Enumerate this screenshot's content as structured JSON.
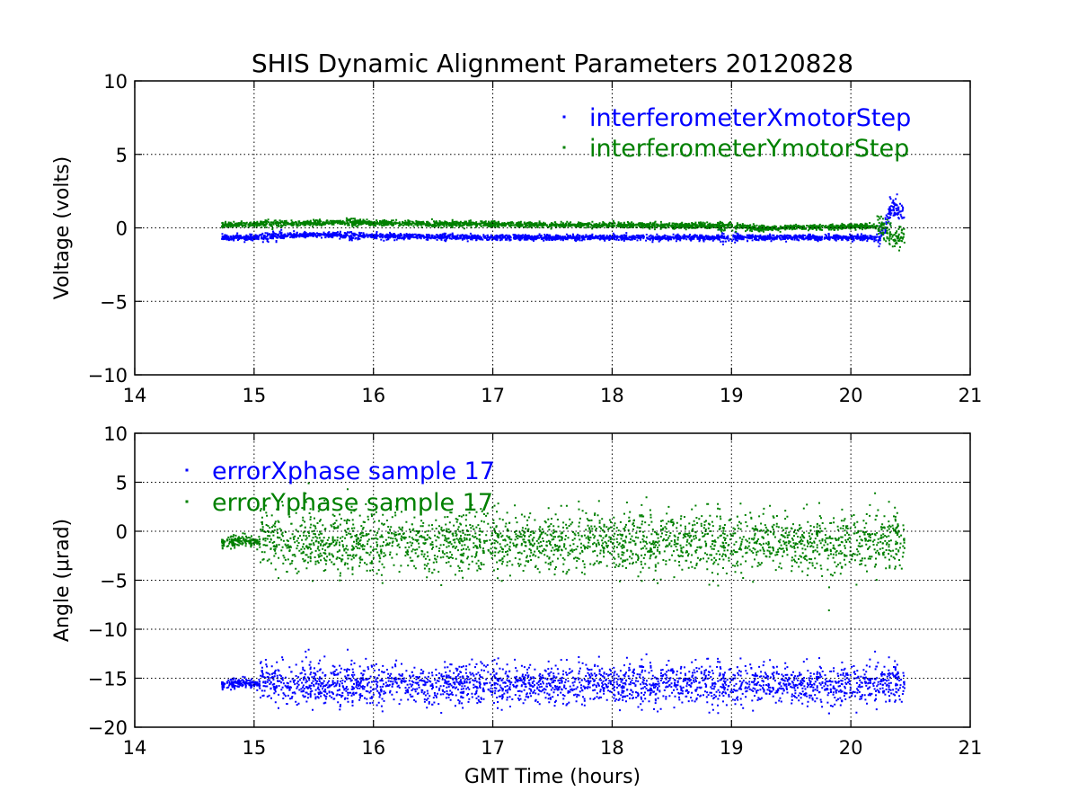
{
  "figure_title": "SHIS Dynamic Alignment Parameters 20120828",
  "chart_data": [
    {
      "type": "scatter",
      "xlabel": "",
      "ylabel": "Voltage (volts)",
      "xlim": [
        14,
        21
      ],
      "ylim": [
        -10,
        10
      ],
      "xticks": [
        14,
        15,
        16,
        17,
        18,
        19,
        20,
        21
      ],
      "yticks": [
        -10,
        -5,
        0,
        5,
        10
      ],
      "xtick_labels": [
        "14",
        "15",
        "16",
        "17",
        "18",
        "19",
        "20",
        "21"
      ],
      "ytick_labels": [
        "−10",
        "−5",
        "0",
        "5",
        "10"
      ],
      "grid": true,
      "legend_position": "top-right",
      "series": [
        {
          "name": "interferometerXmotorStep",
          "color": "#0000ff",
          "x": [
            14.73,
            15.0,
            15.25,
            15.5,
            15.75,
            16.0,
            16.5,
            17.0,
            17.5,
            18.0,
            18.5,
            19.0,
            19.5,
            20.0,
            20.25,
            20.35,
            20.45
          ],
          "y": [
            -0.6,
            -0.6,
            -0.45,
            -0.4,
            -0.45,
            -0.5,
            -0.55,
            -0.6,
            -0.6,
            -0.6,
            -0.6,
            -0.6,
            -0.6,
            -0.6,
            -0.6,
            1.5,
            1.0
          ]
        },
        {
          "name": "interferometerYmotorStep",
          "color": "#008000",
          "x": [
            14.73,
            15.0,
            15.25,
            15.5,
            15.8,
            16.0,
            16.5,
            17.0,
            17.5,
            18.0,
            18.5,
            19.0,
            19.25,
            19.5,
            20.0,
            20.25,
            20.35,
            20.45
          ],
          "y": [
            0.25,
            0.3,
            0.35,
            0.4,
            0.45,
            0.4,
            0.35,
            0.3,
            0.25,
            0.25,
            0.2,
            0.2,
            0.0,
            0.1,
            0.15,
            0.15,
            -0.6,
            -0.5
          ]
        }
      ]
    },
    {
      "type": "scatter",
      "xlabel": "GMT Time (hours)",
      "ylabel": "Angle (μrad)",
      "xlim": [
        14,
        21
      ],
      "ylim": [
        -20,
        10
      ],
      "xticks": [
        14,
        15,
        16,
        17,
        18,
        19,
        20,
        21
      ],
      "yticks": [
        -20,
        -15,
        -10,
        -5,
        0,
        5,
        10
      ],
      "xtick_labels": [
        "14",
        "15",
        "16",
        "17",
        "18",
        "19",
        "20",
        "21"
      ],
      "ytick_labels": [
        "−20",
        "−15",
        "−10",
        "−5",
        "0",
        "5",
        "10"
      ],
      "grid": true,
      "legend_position": "top-left",
      "series": [
        {
          "name": "errorXphase sample 17",
          "color": "#0000ff",
          "x_range": [
            14.73,
            20.45
          ],
          "transition_x": 15.05,
          "y_center": -15.5,
          "y_spread_before": 0.5,
          "y_spread_after": 2.0,
          "y_min": -18.5,
          "y_max": -12.0
        },
        {
          "name": "errorYphase sample 17",
          "color": "#008000",
          "x_range": [
            14.73,
            20.45
          ],
          "transition_x": 15.05,
          "y_center": -1.0,
          "y_spread_before": 0.6,
          "y_spread_after": 3.0,
          "y_min": -8.0,
          "y_max": 5.5
        }
      ]
    }
  ]
}
